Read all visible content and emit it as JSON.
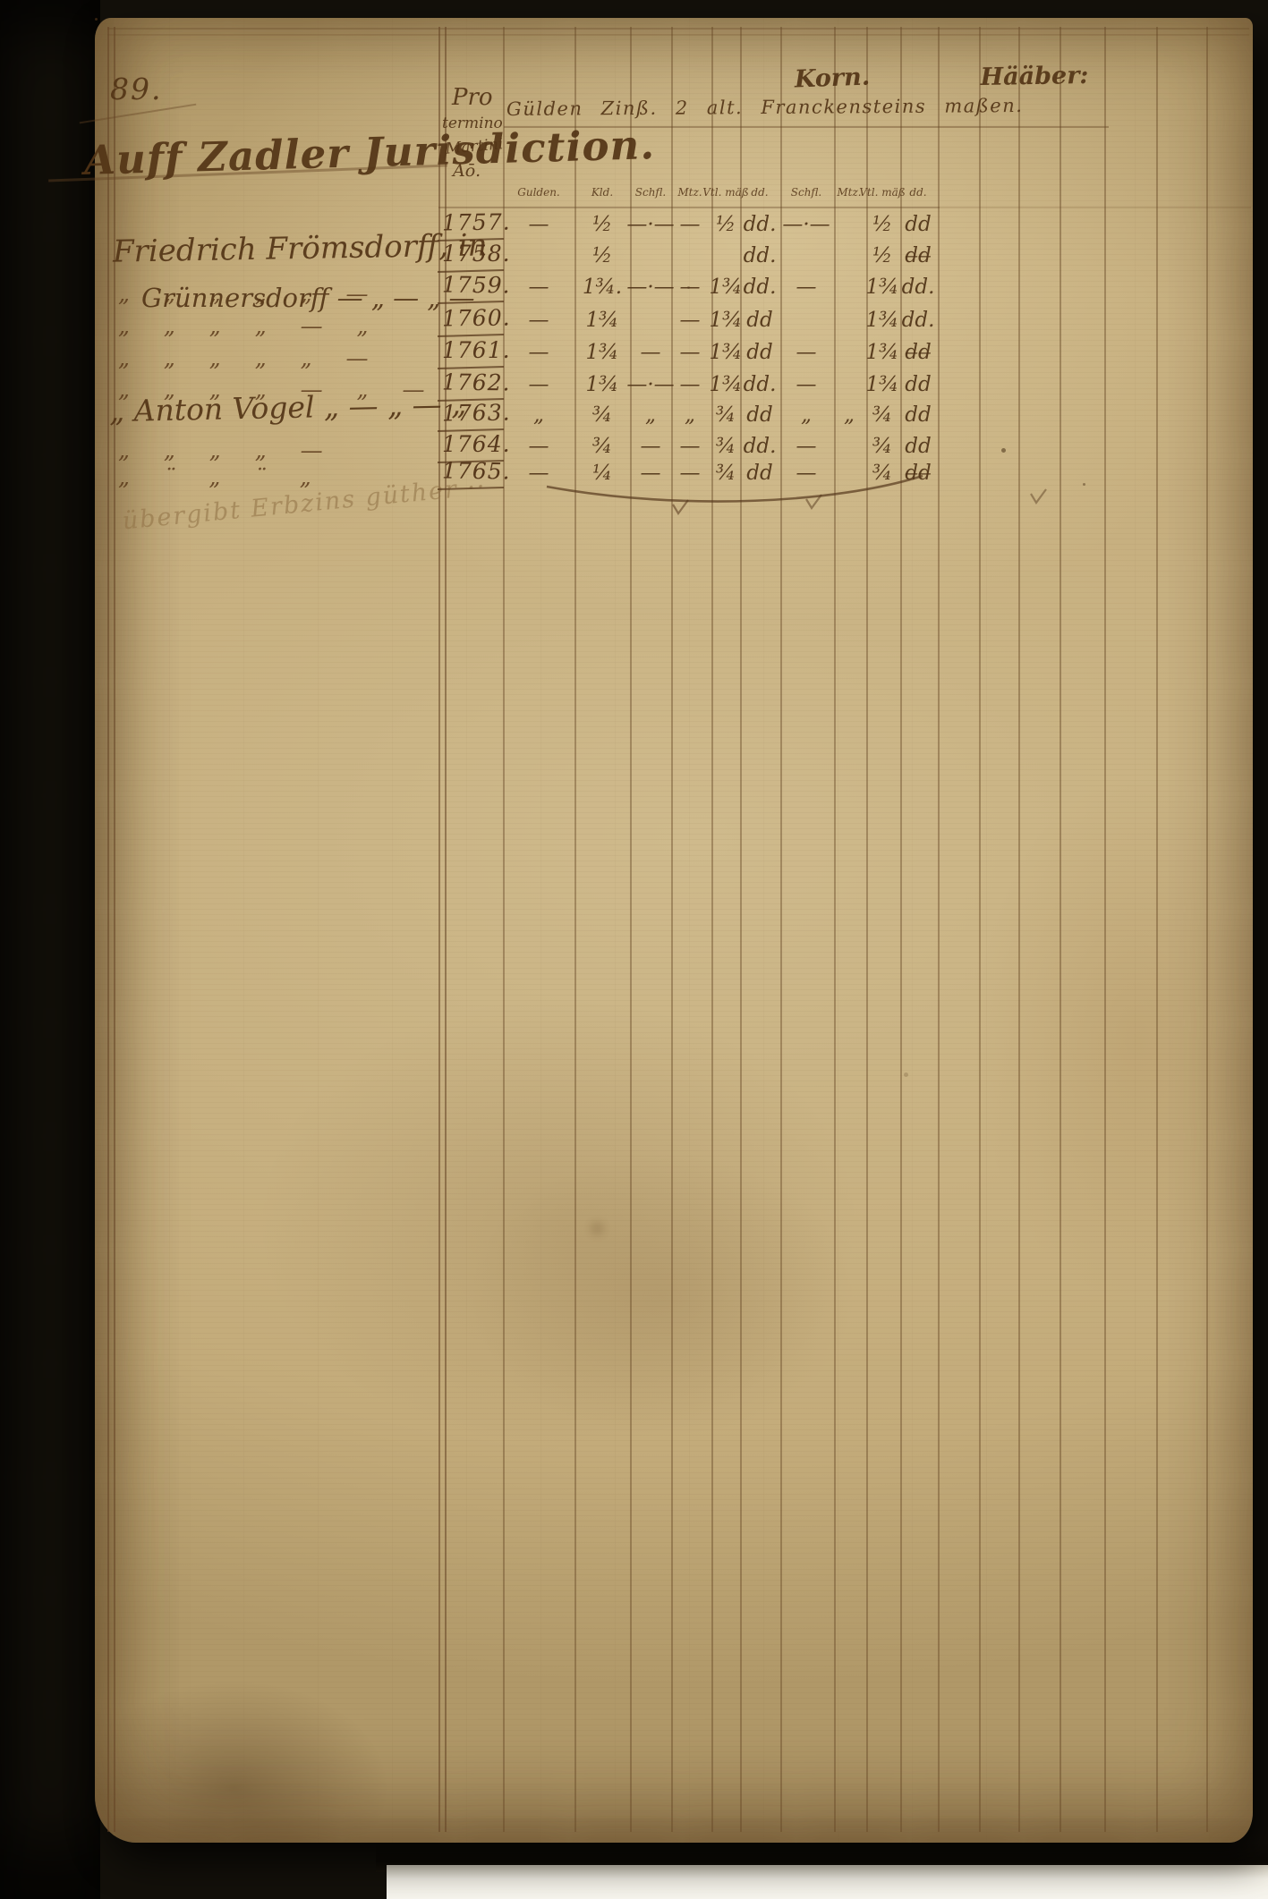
{
  "document": {
    "page_number": "89.",
    "heading": "Auff Zadler Jurisdiction.",
    "term_lines": [
      "Pro",
      "termino",
      "Martini",
      "Aō."
    ],
    "group_header": "Gülden Zinß. 2 alt. Franckensteins maßen.",
    "korn_header": "Korn.",
    "haaber_header": "Hääber:",
    "subheaders": [
      "Gulden.",
      "Kld.",
      "Schfl.",
      "Mtz.",
      "Vtl. mäß",
      "dd.",
      "Schfl.",
      "Mtz.",
      "Vtl. mäß",
      "dd."
    ],
    "name_line1": "Friedrich Frömsdorff, in",
    "name_line2": "Grünnersdorff — „ — „ —",
    "anton_line": "„ Anton Vogel „ — „ — „",
    "footnote": "übergibt Erbzins güther ··",
    "ditto_rows": [
      "„ „ „ „ „ —",
      "„ „ „ „ — „",
      "„ „ „ „ „ —",
      "„ „ „ „ — „ —",
      "„ „ „ „ —",
      "„ ¨ „ ¨ „"
    ],
    "rows": [
      {
        "year": "1757.",
        "cells": [
          "—",
          "½",
          "—·—",
          "—",
          "½",
          "dd.",
          "—·—",
          "",
          "½",
          "dd"
        ]
      },
      {
        "year": "1758.",
        "cells": [
          "",
          "½",
          "",
          "",
          "",
          "dd.",
          "",
          "",
          "½",
          "d̶d̶"
        ]
      },
      {
        "year": "1759.",
        "cells": [
          "—",
          "1¾.",
          "—·—",
          "—",
          "1¾",
          "dd.",
          "—",
          "",
          "1¾",
          "dd."
        ]
      },
      {
        "year": "1760.",
        "cells": [
          "—",
          "1¾",
          "",
          "—",
          "1¾",
          "dd",
          "",
          "",
          "1¾",
          "dd."
        ]
      },
      {
        "year": "1761.",
        "cells": [
          "—",
          "1¾",
          "—",
          "—",
          "1¾",
          "dd",
          "—",
          "",
          "1¾",
          "d̶d̶"
        ]
      },
      {
        "year": "1762.",
        "cells": [
          "—",
          "1¾",
          "—·—",
          "—",
          "1¾",
          "dd.",
          "—",
          "",
          "1¾",
          "dd"
        ]
      },
      {
        "year": "1763.",
        "cells": [
          "„",
          "¾",
          "„",
          "„",
          "¾",
          "dd",
          "„",
          "„",
          "¾",
          "dd"
        ]
      },
      {
        "year": "1764.",
        "cells": [
          "—",
          "¾",
          "—",
          "—",
          "¾",
          "dd.",
          "—",
          "",
          "¾",
          "dd"
        ]
      },
      {
        "year": "1765.",
        "cells": [
          "—",
          "¼",
          "—",
          "—",
          "¾",
          "dd",
          "—",
          "",
          "¾",
          "d̶d̶"
        ]
      }
    ],
    "ink_color": "#5a3c1d",
    "paper_color": "#c8b283"
  }
}
